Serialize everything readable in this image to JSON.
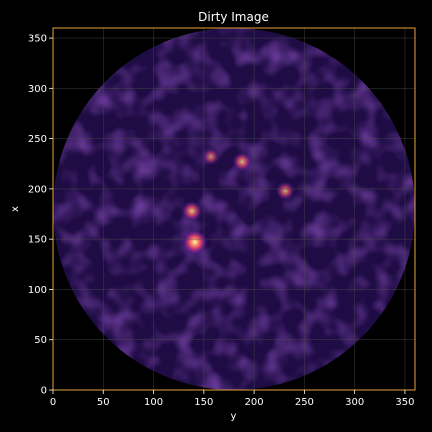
{
  "chart_data": {
    "type": "heatmap",
    "title": "Dirty Image",
    "xlabel": "y",
    "ylabel": "x",
    "xlim": [
      0,
      360
    ],
    "ylim": [
      0,
      360
    ],
    "xticks": [
      "0",
      "50",
      "100",
      "150",
      "200",
      "250",
      "300",
      "350"
    ],
    "yticks": [
      "0",
      "50",
      "100",
      "150",
      "200",
      "250",
      "300",
      "350"
    ],
    "grid": true,
    "colormap": "magma",
    "aperture": {
      "shape": "circle",
      "center": [
        180,
        180
      ],
      "radius": 180
    },
    "sources": [
      {
        "y": 141,
        "x": 147,
        "intensity": 1.0
      },
      {
        "y": 138,
        "x": 178,
        "intensity": 0.55
      },
      {
        "y": 188,
        "x": 227,
        "intensity": 0.45
      },
      {
        "y": 231,
        "x": 198,
        "intensity": 0.4
      },
      {
        "y": 157,
        "x": 232,
        "intensity": 0.25
      }
    ],
    "colors": {
      "background": "#000000",
      "axes_frame": "#e8a33c",
      "grid": "#4a4a4a",
      "text": "#ffffff"
    }
  }
}
